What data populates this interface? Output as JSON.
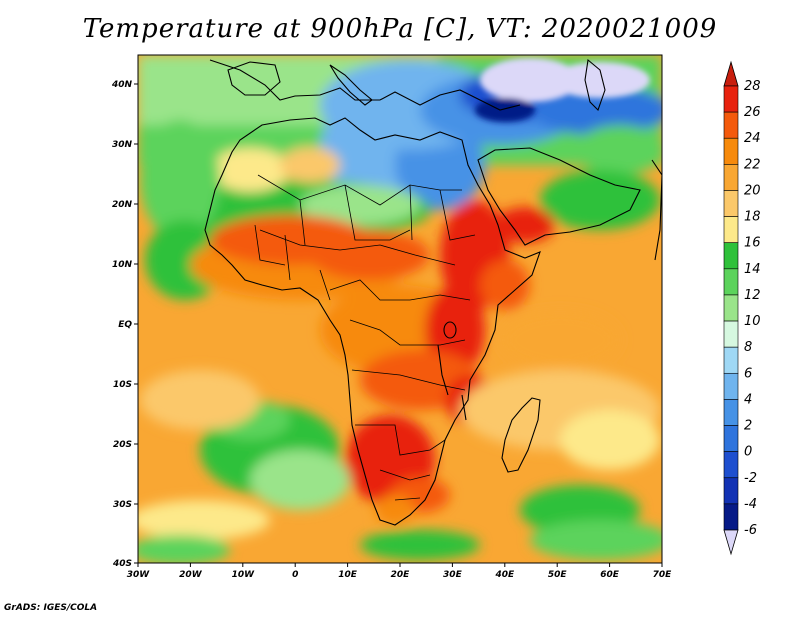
{
  "title": "Temperature at 900hPa [C], VT: 2020021009",
  "credit": "GrADS: IGES/COLA",
  "axes": {
    "lon_labels": [
      "30W",
      "20W",
      "10W",
      "0",
      "10E",
      "20E",
      "30E",
      "40E",
      "50E",
      "60E",
      "70E"
    ],
    "lat_labels": [
      "40N",
      "30N",
      "20N",
      "10N",
      "EQ",
      "10S",
      "20S",
      "30S",
      "40S"
    ]
  },
  "colorbar": {
    "labels": [
      "28",
      "26",
      "24",
      "22",
      "20",
      "18",
      "16",
      "14",
      "12",
      "10",
      "8",
      "6",
      "4",
      "2",
      "0",
      "-2",
      "-4",
      "-6"
    ],
    "colors": [
      "#e8220e",
      "#f45a0c",
      "#f78a0c",
      "#f9a733",
      "#fbc86a",
      "#fde98a",
      "#2fc13a",
      "#5cd35c",
      "#9ae48a",
      "#d6f8e0",
      "#9fd8f5",
      "#6fb4ee",
      "#4692e6",
      "#2f74dd",
      "#1e4fcf",
      "#1232b4",
      "#061a87"
    ],
    "top_arrow_color": "#c81e0e",
    "bottom_arrow_color": "#dcd8f8"
  },
  "colors": {
    "ocean": "#f9b04a",
    "land_hot": "#e8500e",
    "north_cold": "#5c95e8",
    "green": "#3cc848"
  }
}
